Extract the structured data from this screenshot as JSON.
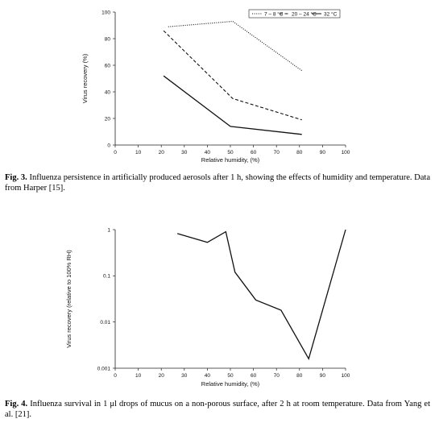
{
  "figures": [
    {
      "caption": {
        "label": "Fig. 3.",
        "text": "Influenza persistence in artificially produced aerosols after 1 h, showing the effects of humidity and temperature. Data from Harper [15]."
      }
    },
    {
      "caption": {
        "label": "Fig. 4.",
        "text": "Influenza survival in 1 μl drops of mucus on a non-porous surface, after 2 h at room temperature. Data from Yang et al. [21]."
      }
    }
  ],
  "chart_data": [
    {
      "type": "line",
      "title": "",
      "xlabel": "Relative humidity, (%)",
      "ylabel": "Virus recovery (%)",
      "xlim": [
        0,
        100
      ],
      "ylim": [
        0,
        100
      ],
      "x_ticks": [
        0,
        10,
        20,
        30,
        40,
        50,
        60,
        70,
        80,
        90,
        100
      ],
      "y_ticks": [
        0,
        20,
        40,
        60,
        80,
        100
      ],
      "grid": false,
      "legend_position": "top-right",
      "series": [
        {
          "name": "7 – 8 °C",
          "style": "dotted",
          "x": [
            23,
            51,
            81
          ],
          "y": [
            89,
            93,
            56
          ]
        },
        {
          "name": "20 – 24 °C",
          "style": "dashed",
          "x": [
            21,
            51,
            81
          ],
          "y": [
            86,
            35,
            19
          ]
        },
        {
          "name": "32 °C",
          "style": "solid",
          "x": [
            21,
            50,
            81
          ],
          "y": [
            52,
            14,
            8
          ]
        }
      ]
    },
    {
      "type": "line",
      "title": "",
      "xlabel": "Relative humidity, (%)",
      "ylabel": "Virus recovery (relative to 100% RH)",
      "xlim": [
        0,
        100
      ],
      "ylim": [
        0.001,
        1
      ],
      "yscale": "log",
      "x_ticks": [
        0,
        10,
        20,
        30,
        40,
        50,
        60,
        70,
        80,
        90,
        100
      ],
      "y_ticks": [
        {
          "value": 0.001,
          "label": "0.001"
        },
        {
          "value": 0.01,
          "label": "0.01"
        },
        {
          "value": 0.1,
          "label": "0.1"
        },
        {
          "value": 1,
          "label": "1"
        }
      ],
      "grid": false,
      "series": [
        {
          "style": "solid",
          "x": [
            27,
            40,
            48,
            52,
            61,
            72,
            84,
            100
          ],
          "y": [
            0.82,
            0.53,
            0.9,
            0.12,
            0.03,
            0.018,
            0.0016,
            1
          ]
        }
      ]
    }
  ]
}
